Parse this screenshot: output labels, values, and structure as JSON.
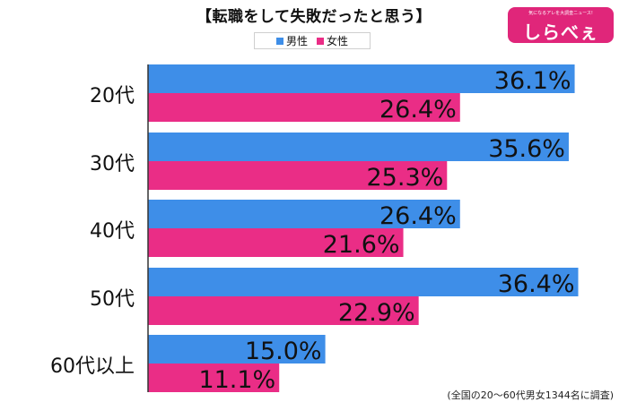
{
  "title": "【転職をして失敗だったと思う】",
  "logo": {
    "tagline": "気になるアレを大調査ニュース!",
    "name": "しらべぇ",
    "color": "#e0267a"
  },
  "legend": [
    {
      "label": "男性",
      "color": "#3e8ee8"
    },
    {
      "label": "女性",
      "color": "#ea2d86"
    }
  ],
  "note": "(全国の20～60代男女1344名に調査)",
  "chart_data": {
    "type": "bar",
    "orientation": "horizontal",
    "categories": [
      "20代",
      "30代",
      "40代",
      "50代",
      "60代以上"
    ],
    "series": [
      {
        "name": "男性",
        "color": "#3e8ee8",
        "values": [
          36.1,
          35.6,
          26.4,
          36.4,
          15.0
        ],
        "labels": [
          "36.1%",
          "35.6%",
          "26.4%",
          "36.4%",
          "15.0%"
        ]
      },
      {
        "name": "女性",
        "color": "#ea2d86",
        "values": [
          26.4,
          25.3,
          21.6,
          22.9,
          11.1
        ],
        "labels": [
          "26.4%",
          "25.3%",
          "21.6%",
          "22.9%",
          "11.1%"
        ]
      }
    ],
    "xlim": [
      0,
      37.5
    ],
    "grid": false,
    "legend_position": "top-center"
  }
}
